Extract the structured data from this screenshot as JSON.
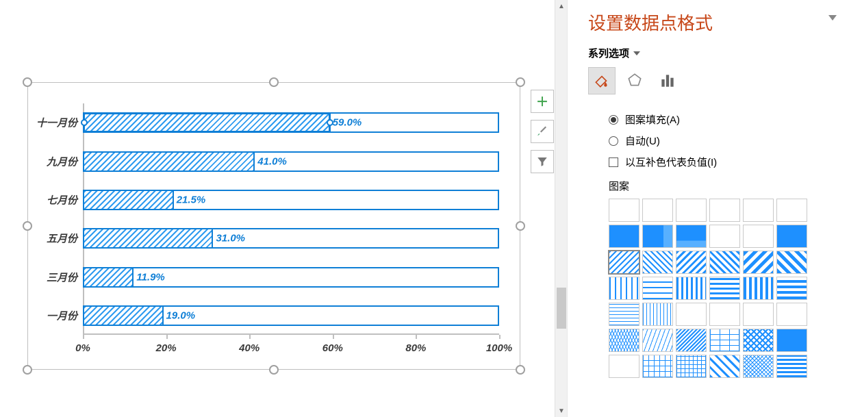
{
  "chart": {
    "type": "bar-horizontal",
    "xlim": [
      0,
      100
    ],
    "xtick_step": 20,
    "xtick_suffix": "%",
    "bar_border_color": "#0f7fd6",
    "bar_fill_pattern": "diagonal-hatch",
    "bar_fill_color": "#2e9bf0",
    "label_font_style": "italic-bold",
    "label_color": "#3a3a3a",
    "value_color": "#0f7fd6",
    "axis_color": "#bfbfbf",
    "categories": [
      {
        "label": "十一月份",
        "value": 59.0,
        "display": "59.0%",
        "selected": true
      },
      {
        "label": "九月份",
        "value": 41.0,
        "display": "41.0%"
      },
      {
        "label": "七月份",
        "value": 21.5,
        "display": "21.5%"
      },
      {
        "label": "五月份",
        "value": 31.0,
        "display": "31.0%"
      },
      {
        "label": "三月份",
        "value": 11.9,
        "display": "11.9%"
      },
      {
        "label": "一月份",
        "value": 19.0,
        "display": "19.0%"
      }
    ],
    "xticks": [
      {
        "v": 0,
        "label": "0%"
      },
      {
        "v": 20,
        "label": "20%"
      },
      {
        "v": 40,
        "label": "40%"
      },
      {
        "v": 60,
        "label": "60%"
      },
      {
        "v": 80,
        "label": "80%"
      },
      {
        "v": 100,
        "label": "100%"
      }
    ]
  },
  "side_buttons": {
    "add": "＋",
    "style_brush": "brush",
    "filter": "filter"
  },
  "pane": {
    "title": "设置数据点格式",
    "series_label": "系列选项",
    "fill_options": {
      "pattern_fill": "图案填充(A)",
      "auto_fill": "自动(U)",
      "invert_negative": "以互补色代表负值(I)"
    },
    "pattern_section_title": "图案",
    "selected_pattern_index": 12,
    "tabbtns": [
      "fill-icon",
      "effects-icon",
      "series-icon"
    ],
    "patterns": [
      {
        "id": 0,
        "css": "radial-gradient(#1e90ff 1px, transparent 1px) 0 0/8px 8px"
      },
      {
        "id": 1,
        "css": "radial-gradient(#1e90ff 1px, transparent 1px) 0 0/6px 6px"
      },
      {
        "id": 2,
        "css": "radial-gradient(#1e90ff 1.5px, transparent 1.5px) 0 0/6px 6px"
      },
      {
        "id": 3,
        "css": "radial-gradient(#1e90ff 1.2px, transparent 1.2px) 0 0/5px 5px"
      },
      {
        "id": 4,
        "css": "radial-gradient(#1e90ff 1.5px, transparent 1.5px) 0 0/5px 5px"
      },
      {
        "id": 5,
        "css": "radial-gradient(#1e90ff 2px, transparent 2px) 0 0/5px 5px"
      },
      {
        "id": 6,
        "css": "linear-gradient(#1e90ff,#1e90ff)"
      },
      {
        "id": 7,
        "css": "linear-gradient(90deg,#1e90ff 70%,#58b0ff 70%)"
      },
      {
        "id": 8,
        "css": "linear-gradient(#1e90ff 70%,#58b0ff 70%)"
      },
      {
        "id": 9,
        "css": "radial-gradient(#58b0ff 2px, #1e90ff 2px) 0 0/6px 6px"
      },
      {
        "id": 10,
        "css": "radial-gradient(#fff 1px, #1e90ff 1px) 0 0/6px 6px"
      },
      {
        "id": 11,
        "css": "linear-gradient(#1e90ff,#1e90ff)"
      },
      {
        "id": 12,
        "css": "repeating-linear-gradient(135deg,#1e90ff 0,#1e90ff 2px,transparent 2px,transparent 6px)"
      },
      {
        "id": 13,
        "css": "repeating-linear-gradient(45deg,#1e90ff 0,#1e90ff 2px,transparent 2px,transparent 6px)"
      },
      {
        "id": 14,
        "css": "repeating-linear-gradient(135deg,#1e90ff 0,#1e90ff 3px,transparent 3px,transparent 7px)"
      },
      {
        "id": 15,
        "css": "repeating-linear-gradient(45deg,#1e90ff 0,#1e90ff 3px,transparent 3px,transparent 7px)"
      },
      {
        "id": 16,
        "css": "repeating-linear-gradient(135deg,#1e90ff 0,#1e90ff 5px,#fff 5px,#fff 10px)"
      },
      {
        "id": 17,
        "css": "repeating-linear-gradient(45deg,#1e90ff 0,#1e90ff 5px,#fff 5px,#fff 10px)"
      },
      {
        "id": 18,
        "css": "repeating-linear-gradient(90deg,#1e90ff 0,#1e90ff 2px,transparent 2px,transparent 8px)"
      },
      {
        "id": 19,
        "css": "repeating-linear-gradient(0deg,#1e90ff 0,#1e90ff 2px,transparent 2px,transparent 8px)"
      },
      {
        "id": 20,
        "css": "repeating-linear-gradient(90deg,#1e90ff 0,#1e90ff 3px,transparent 3px,transparent 7px)"
      },
      {
        "id": 21,
        "css": "repeating-linear-gradient(0deg,#1e90ff 0,#1e90ff 3px,transparent 3px,transparent 7px)"
      },
      {
        "id": 22,
        "css": "repeating-linear-gradient(90deg,#1e90ff 0,#1e90ff 4px,#fff 4px,#fff 8px)"
      },
      {
        "id": 23,
        "css": "repeating-linear-gradient(0deg,#1e90ff 0,#1e90ff 4px,#fff 4px,#fff 8px)"
      },
      {
        "id": 24,
        "css": "repeating-linear-gradient(0deg,#1e90ff 0,#1e90ff 1px,transparent 1px,transparent 5px)"
      },
      {
        "id": 25,
        "css": "repeating-linear-gradient(90deg,#1e90ff 0,#1e90ff 1px,transparent 1px,transparent 5px)"
      },
      {
        "id": 26,
        "css": "radial-gradient(circle,#1e90ff 30%,transparent 30%) 0 0/8px 8px"
      },
      {
        "id": 27,
        "css": "radial-gradient(circle,#1e90ff 40%,transparent 40%) 0 0/7px 7px"
      },
      {
        "id": 28,
        "css": "radial-gradient(circle,#1e90ff 40%,transparent 40%) 0 0/6px 6px"
      },
      {
        "id": 29,
        "css": "radial-gradient(circle,#1e90ff 45%,transparent 45%) 0 0/5px 5px"
      },
      {
        "id": 30,
        "css": "repeating-linear-gradient(115deg,#1e90ff 0,#1e90ff 1px,transparent 1px,transparent 4px),repeating-linear-gradient(65deg,#1e90ff 0,#1e90ff 1px,transparent 1px,transparent 4px)"
      },
      {
        "id": 31,
        "css": "repeating-linear-gradient(110deg,#1e90ff 0,#1e90ff 1px,transparent 1px,transparent 6px)"
      },
      {
        "id": 32,
        "css": "repeating-linear-gradient(135deg,#1e90ff 0,#1e90ff 2px,#fff 2px,#fff 4px),repeating-linear-gradient(45deg,#1e90ff 0,#1e90ff 2px,#fff 2px,#fff 4px)"
      },
      {
        "id": 33,
        "css": "repeating-linear-gradient(0deg,#1e90ff 0,#1e90ff 1px,transparent 1px,transparent 8px),repeating-linear-gradient(90deg,#1e90ff 0,#1e90ff 1px,transparent 1px,transparent 14px)"
      },
      {
        "id": 34,
        "css": "repeating-linear-gradient(45deg,#1e90ff 0,#1e90ff 2px,transparent 2px,transparent 6px),repeating-linear-gradient(135deg,#1e90ff 0,#1e90ff 2px,transparent 2px,transparent 6px)"
      },
      {
        "id": 35,
        "css": "linear-gradient(#1e90ff,#1e90ff),repeating-linear-gradient(0deg,#fff 0,#fff 1px,transparent 1px,transparent 8px),repeating-linear-gradient(90deg,#fff 0,#fff 1px,transparent 1px,transparent 8px)"
      },
      {
        "id": 36,
        "css": "radial-gradient(#1e90ff 1px,transparent 1px) 0 0/4px 4px"
      },
      {
        "id": 37,
        "css": "repeating-linear-gradient(0deg,#1e90ff 0,#1e90ff 1px,transparent 1px,transparent 8px),repeating-linear-gradient(90deg,#1e90ff 0,#1e90ff 1px,transparent 1px,transparent 8px)"
      },
      {
        "id": 38,
        "css": "repeating-linear-gradient(0deg,#1e90ff 0,#1e90ff 1px,transparent 1px,transparent 6px),repeating-linear-gradient(90deg,#1e90ff 0,#1e90ff 1px,transparent 1px,transparent 6px)"
      },
      {
        "id": 39,
        "css": "repeating-linear-gradient(45deg,#1e90ff 0,#1e90ff 3px,transparent 3px,transparent 9px)"
      },
      {
        "id": 40,
        "css": "repeating-linear-gradient(45deg,#1e90ff 0,#1e90ff 1px,transparent 1px,transparent 4px),repeating-linear-gradient(135deg,#1e90ff 0,#1e90ff 1px,transparent 1px,transparent 4px)"
      },
      {
        "id": 41,
        "css": "repeating-linear-gradient(0deg,#1e90ff 0,#1e90ff 3px,#fff 3px,#fff 6px),repeating-linear-gradient(90deg,#1e90ff 0,#1e90ff 3px,transparent 3px,transparent 6px)"
      }
    ]
  }
}
